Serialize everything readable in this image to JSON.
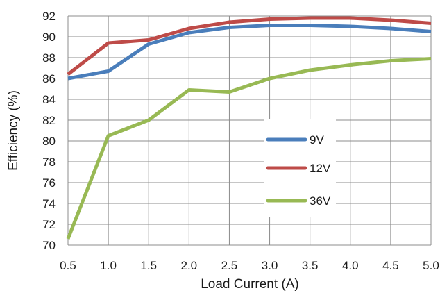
{
  "chart_data": {
    "type": "line",
    "title": "",
    "xlabel": "Load Current (A)",
    "ylabel": "Efficiency (%)",
    "x": [
      0.5,
      1.0,
      1.5,
      2.0,
      2.5,
      3.0,
      3.5,
      4.0,
      4.5,
      5.0
    ],
    "x_tick_labels": [
      "0.5",
      "1.0",
      "1.5",
      "2.0",
      "2.5",
      "3.0",
      "3.5",
      "4.0",
      "4.5",
      "5.0"
    ],
    "y_tick_labels": [
      "70",
      "72",
      "74",
      "76",
      "78",
      "80",
      "82",
      "84",
      "86",
      "88",
      "90",
      "92"
    ],
    "xlim": [
      0.5,
      5.0
    ],
    "ylim": [
      70,
      92
    ],
    "grid": true,
    "legend_position": "center-right",
    "series": [
      {
        "name": "9V",
        "color": "#4a7ebb",
        "values": [
          86.0,
          86.7,
          89.3,
          90.4,
          90.9,
          91.1,
          91.1,
          91.0,
          90.8,
          90.5
        ]
      },
      {
        "name": "12V",
        "color": "#be4b48",
        "values": [
          86.4,
          89.4,
          89.7,
          90.8,
          91.4,
          91.7,
          91.8,
          91.8,
          91.6,
          91.3
        ]
      },
      {
        "name": "36V",
        "color": "#98b954",
        "values": [
          70.6,
          80.5,
          82.0,
          84.9,
          84.7,
          86.0,
          86.8,
          87.3,
          87.7,
          87.9
        ]
      }
    ]
  }
}
